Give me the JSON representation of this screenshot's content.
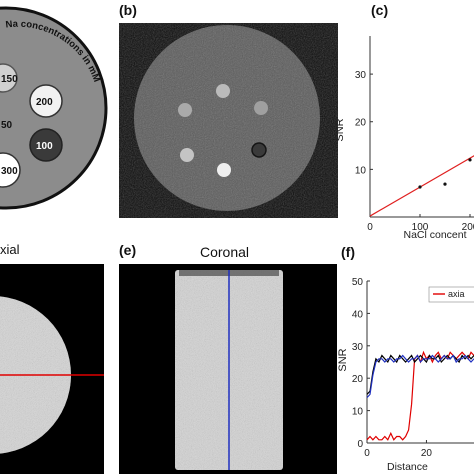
{
  "panels": {
    "a": {
      "title": "Na concentrations in mM",
      "circle_labels": [
        "150",
        "200",
        "50",
        "100",
        "300"
      ]
    },
    "b": {
      "label": "(b)"
    },
    "c": {
      "label": "(c)",
      "ylabel": "SNR",
      "xlabel": "NaCl concent",
      "y_ticks": [
        "10",
        "20",
        "30"
      ],
      "x_ticks": [
        "0",
        "100",
        "200"
      ]
    },
    "d": {
      "title": "xial"
    },
    "e": {
      "label": "(e)",
      "title": "Coronal"
    },
    "f": {
      "label": "(f)",
      "ylabel": "SNR",
      "xlabel": "Distance",
      "legend_label": "axia",
      "y_ticks": [
        "0",
        "10",
        "20",
        "30",
        "40",
        "50"
      ],
      "x_ticks": [
        "0",
        "20"
      ]
    }
  },
  "colors": {
    "fit_line": "#e02020",
    "axial_line": "#e00000",
    "coronal_line": "#2030c0",
    "black_line": "#000000",
    "phantom_gray": "#8c8c8c"
  },
  "chart_data": [
    {
      "type": "scatter",
      "panel": "c",
      "xlabel": "NaCl concent",
      "ylabel": "SNR",
      "xlim": [
        0,
        260
      ],
      "ylim": [
        0,
        38
      ],
      "points": [
        {
          "x": 100,
          "y": 6.3
        },
        {
          "x": 150,
          "y": 6.9
        },
        {
          "x": 200,
          "y": 12.0
        }
      ],
      "fit": {
        "x": [
          0,
          260
        ],
        "y": [
          0.2,
          16.0
        ]
      }
    },
    {
      "type": "line",
      "panel": "f",
      "xlabel": "Distance",
      "ylabel": "SNR",
      "xlim": [
        0,
        36
      ],
      "ylim": [
        0,
        50
      ],
      "legend": "axia",
      "series": [
        {
          "name": "axia",
          "x": [
            0,
            1,
            2,
            3,
            4,
            5,
            6,
            7,
            8,
            9,
            10,
            11,
            12,
            13,
            14,
            15,
            16,
            17,
            18,
            19,
            20,
            21,
            22,
            23,
            24,
            25,
            26,
            27,
            28,
            29,
            30,
            31,
            32,
            33,
            34,
            35,
            36
          ],
          "y": [
            1,
            2,
            1,
            2,
            1,
            1,
            2,
            1,
            3,
            1,
            2,
            2,
            1,
            2,
            4,
            12,
            26,
            27,
            25,
            28,
            26,
            27,
            25,
            27,
            28,
            26,
            27,
            26,
            28,
            27,
            26,
            27,
            28,
            27,
            26,
            28,
            27
          ]
        },
        {
          "x": [
            0,
            1,
            2,
            3,
            4,
            5,
            6,
            7,
            8,
            9,
            10,
            11,
            12,
            13,
            14,
            15,
            16,
            17,
            18,
            19,
            20,
            21,
            22,
            23,
            24,
            25,
            26,
            27,
            28,
            29,
            30,
            31,
            32,
            33,
            34,
            35,
            36
          ],
          "y": [
            15,
            16,
            22,
            26,
            25,
            27,
            26,
            25,
            27,
            26,
            25,
            27,
            26,
            25,
            26,
            27,
            25,
            26,
            27,
            26,
            25,
            27,
            26,
            26,
            27,
            25,
            26,
            27,
            26,
            27,
            26,
            25,
            27,
            26,
            27,
            26,
            27
          ]
        },
        {
          "x": [
            0,
            1,
            2,
            3,
            4,
            5,
            6,
            7,
            8,
            9,
            10,
            11,
            12,
            13,
            14,
            15,
            16,
            17,
            18,
            19,
            20,
            21,
            22,
            23,
            24,
            25,
            26,
            27,
            28,
            29,
            30,
            31,
            32,
            33,
            34,
            35,
            36
          ],
          "y": [
            14,
            15,
            21,
            25,
            26,
            26,
            25,
            26,
            26,
            25,
            26,
            26,
            27,
            26,
            25,
            26,
            26,
            27,
            25,
            26,
            26,
            26,
            27,
            26,
            25,
            26,
            27,
            26,
            26,
            27,
            25,
            26,
            26,
            27,
            26,
            25,
            26
          ]
        }
      ]
    }
  ]
}
